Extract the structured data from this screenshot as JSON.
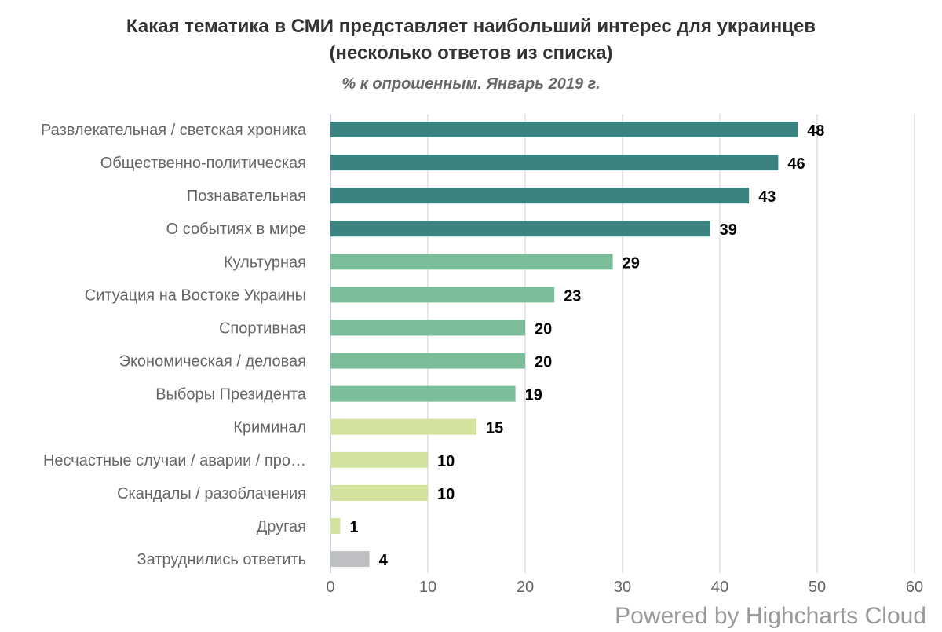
{
  "chart_data": {
    "type": "bar",
    "orientation": "horizontal",
    "title": "Какая тематика в СМИ представляет наибольший интерес для украинцев",
    "title_line2": "(несколько ответов из списка)",
    "subtitle": "% к опрошенным. Январь 2019 г.",
    "categories": [
      "Развлекательная / светская хроника",
      "Общественно-политическая",
      "Познавательная",
      "О событиях в мире",
      "Культурная",
      "Ситуация на Востоке Украины",
      "Спортивная",
      "Экономическая / деловая",
      "Выборы Президента",
      "Криминал",
      "Несчастные случаи / аварии / про…",
      "Скандалы / разоблачения",
      "Другая",
      "Затруднились ответить"
    ],
    "values": [
      48,
      46,
      43,
      39,
      29,
      23,
      20,
      20,
      19,
      15,
      10,
      10,
      1,
      4
    ],
    "colors": [
      "#3a8380",
      "#3a8380",
      "#3a8380",
      "#3a8380",
      "#7bbd98",
      "#7bbd98",
      "#7bbd98",
      "#7bbd98",
      "#7bbd98",
      "#d2e39e",
      "#d2e39e",
      "#d2e39e",
      "#d2e39e",
      "#bebfc2"
    ],
    "xlim": [
      0,
      60
    ],
    "xticks": [
      0,
      10,
      20,
      30,
      40,
      50,
      60
    ],
    "grid": true,
    "legend": "none",
    "data_labels": true
  },
  "credits": "Powered by Highcharts Cloud"
}
